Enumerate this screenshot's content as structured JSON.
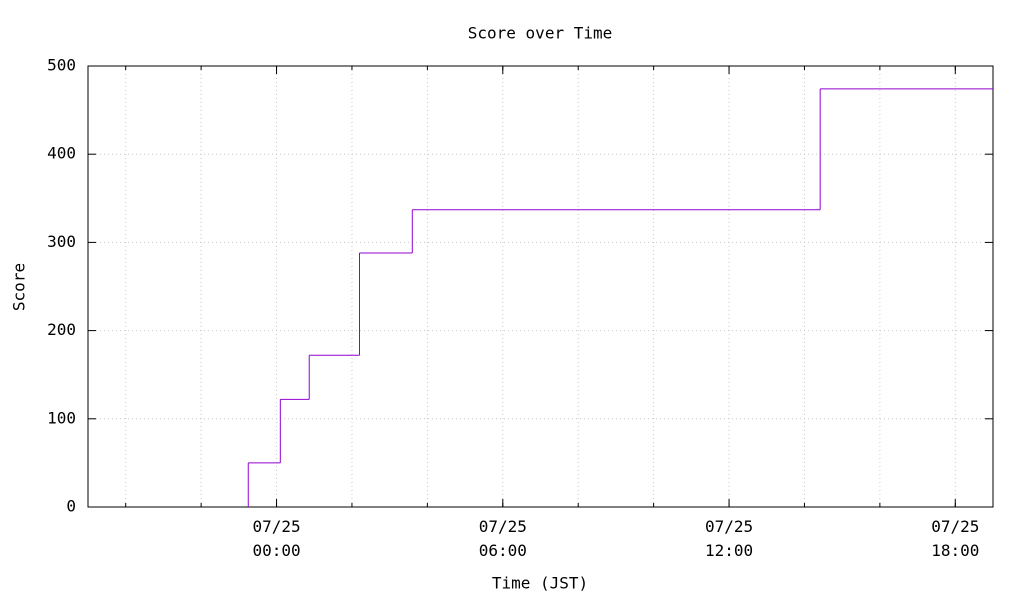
{
  "chart_data": {
    "type": "step",
    "title": "Score over Time",
    "xlabel": "Time (JST)",
    "ylabel": "Score",
    "x": [
      "07/24 23:15",
      "07/24 23:15",
      "07/25 00:06",
      "07/25 00:52",
      "07/25 02:12",
      "07/25 03:36",
      "07/25 14:25"
    ],
    "values": [
      0,
      50,
      122,
      172,
      288,
      337,
      474
    ],
    "color": "#9400d3",
    "xlim": [
      "07/24 19:00",
      "07/25 19:00"
    ],
    "xticks": [
      "07/25 00:00",
      "07/25 06:00",
      "07/25 12:00",
      "07/25 18:00"
    ],
    "xminor": 3,
    "ylim": [
      0,
      500
    ],
    "yticks": [
      0,
      100,
      200,
      300,
      400,
      500
    ],
    "grid": true
  }
}
